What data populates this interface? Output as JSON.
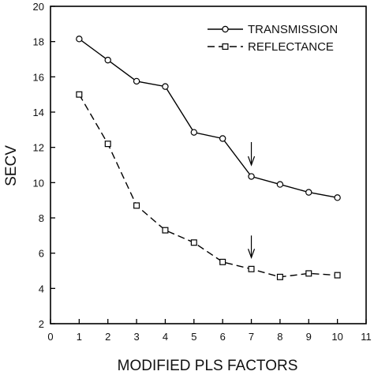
{
  "chart_data": {
    "type": "line",
    "xlabel": "MODIFIED PLS FACTORS",
    "ylabel": "SECV",
    "xlim": [
      0,
      11
    ],
    "ylim": [
      2,
      20
    ],
    "xticks": [
      0,
      1,
      2,
      3,
      4,
      5,
      6,
      7,
      8,
      9,
      10,
      11
    ],
    "yticks": [
      2,
      4,
      6,
      8,
      10,
      12,
      14,
      16,
      18,
      20
    ],
    "grid": false,
    "legend_position": "top-right",
    "x": [
      1,
      2,
      3,
      4,
      5,
      6,
      7,
      8,
      9,
      10
    ],
    "series": [
      {
        "name": "TRANSMISSION",
        "marker": "circle",
        "line_style": "solid",
        "values": [
          18.15,
          16.95,
          15.75,
          15.45,
          12.85,
          12.5,
          10.35,
          9.9,
          9.45,
          9.15
        ]
      },
      {
        "name": "REFLECTANCE",
        "marker": "square",
        "line_style": "dashed",
        "values": [
          15.0,
          12.2,
          8.7,
          7.3,
          6.6,
          5.5,
          5.1,
          4.65,
          4.85,
          4.75
        ]
      }
    ],
    "annotations": [
      {
        "type": "arrow-down",
        "x": 7,
        "y_tip": 11.0,
        "y_tail": 12.3
      },
      {
        "type": "arrow-down",
        "x": 7,
        "y_tip": 5.75,
        "y_tail": 7.0
      }
    ]
  }
}
